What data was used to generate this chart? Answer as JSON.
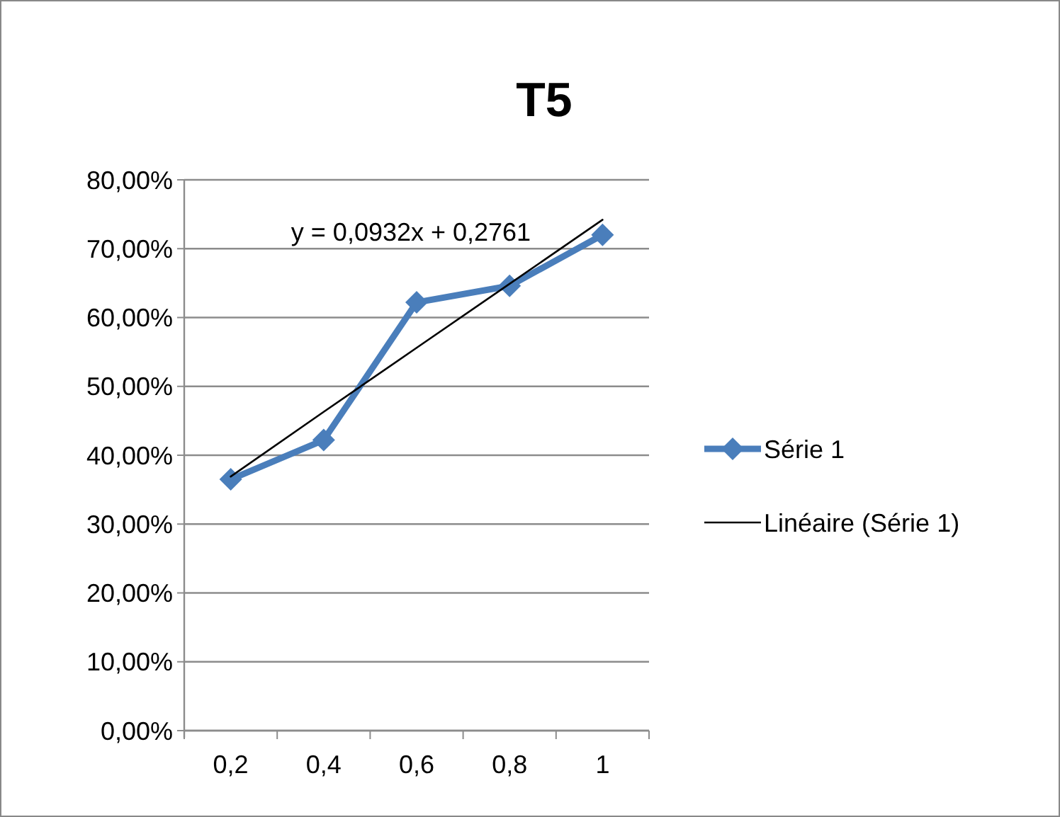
{
  "chart_data": {
    "type": "line",
    "title": "T5",
    "categories": [
      "0,2",
      "0,4",
      "0,6",
      "0,8",
      "1"
    ],
    "series": [
      {
        "name": "Série 1",
        "color": "#4a7ebb",
        "values": [
          36.5,
          42.2,
          62.2,
          64.6,
          72.0
        ],
        "marker": "diamond"
      },
      {
        "name": "Linéaire (Série 1)",
        "color": "#000000",
        "values": [
          36.9,
          46.3,
          55.6,
          64.9,
          74.2
        ],
        "marker": "none"
      }
    ],
    "ylim": [
      0,
      80
    ],
    "yticks": [
      {
        "value": 0,
        "label": "0,00%"
      },
      {
        "value": 10,
        "label": "10,00%"
      },
      {
        "value": 20,
        "label": "20,00%"
      },
      {
        "value": 30,
        "label": "30,00%"
      },
      {
        "value": 40,
        "label": "40,00%"
      },
      {
        "value": 50,
        "label": "50,00%"
      },
      {
        "value": 60,
        "label": "60,00%"
      },
      {
        "value": 70,
        "label": "70,00%"
      },
      {
        "value": 80,
        "label": "80,00%"
      }
    ],
    "grid": "y",
    "legend": "right",
    "annotations": [
      "y = 0,0932x + 0,2761"
    ]
  }
}
